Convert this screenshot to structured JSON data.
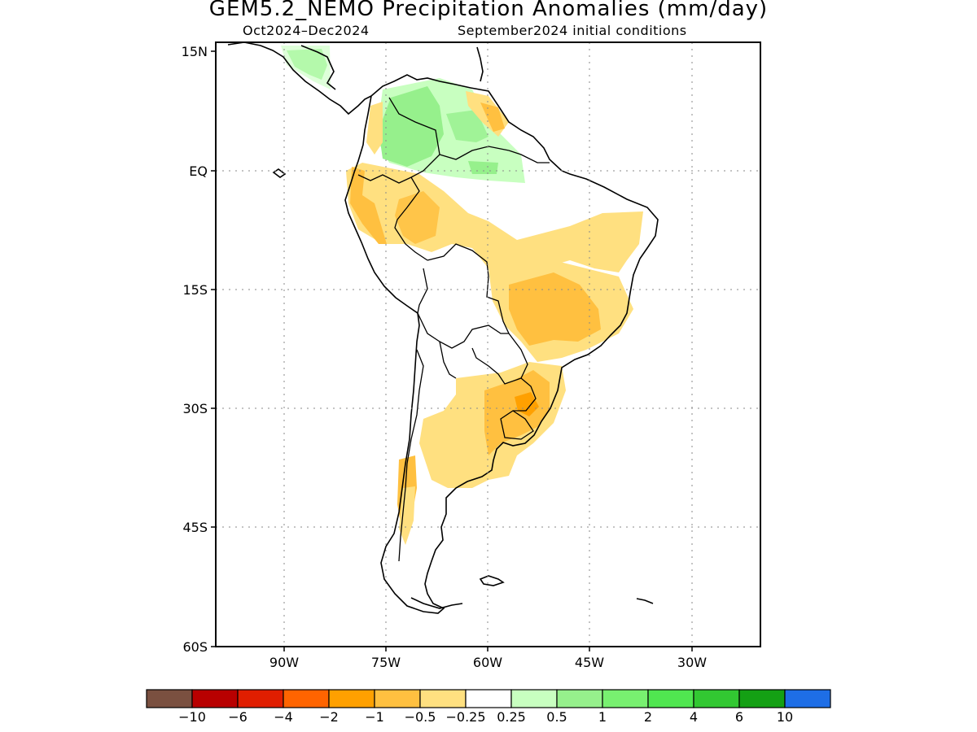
{
  "title": "GEM5.2_NEMO Precipitation Anomalies (mm/day)",
  "subtitle_left": "Oct2024–Dec2024",
  "subtitle_right": "September2024 initial conditions",
  "lat_ticks": [
    "15N",
    "EQ",
    "15S",
    "30S",
    "45S",
    "60S"
  ],
  "lon_ticks": [
    "90W",
    "75W",
    "60W",
    "45W",
    "30W"
  ],
  "colorbar": {
    "colors": [
      "#7a5040",
      "#b80000",
      "#e01e00",
      "#ff6400",
      "#ffa000",
      "#ffc040",
      "#ffe080",
      "#ffffff",
      "#c8ffc0",
      "#96f08c",
      "#78f070",
      "#50e650",
      "#32c832",
      "#14a014",
      "#1e6ee6"
    ],
    "labels": [
      "−10",
      "−6",
      "−4",
      "−2",
      "−1",
      "−0.5",
      "−0.25",
      "0.25",
      "0.5",
      "1",
      "2",
      "4",
      "6",
      "10"
    ]
  },
  "legend_colors": {
    "light_orange": "#ffe080",
    "orange": "#ffc040",
    "dark_orange": "#ffa000",
    "light_green": "#c8ffc0",
    "green": "#96f08c"
  }
}
